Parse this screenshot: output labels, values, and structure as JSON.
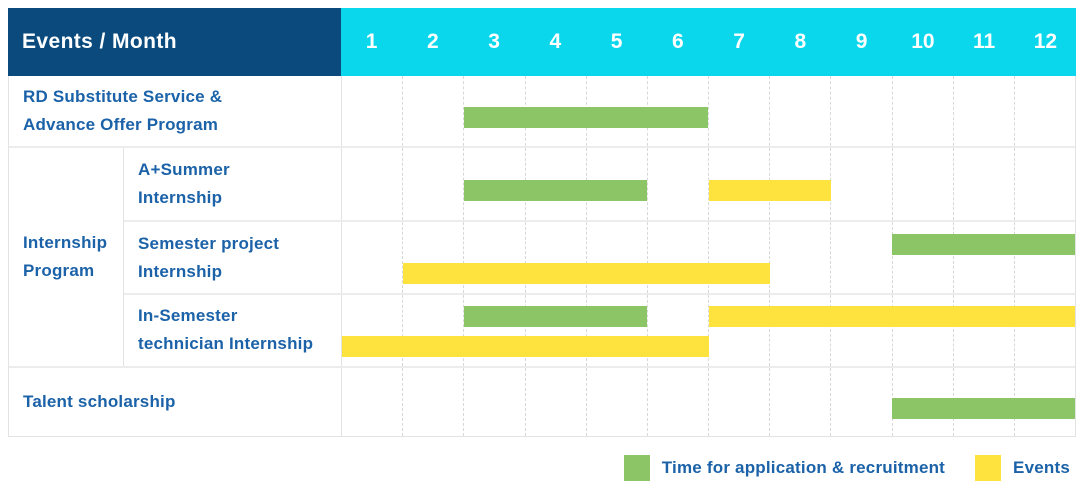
{
  "colors": {
    "header_navy": "#0a4a7d",
    "header_cyan": "#0bd7ec",
    "application_green": "#8cc566",
    "event_yellow": "#fee23e",
    "label_blue": "#1b62a8"
  },
  "chart_data": {
    "type": "bar",
    "subtype": "gantt-schedule",
    "title": "Events / Month",
    "x_axis": {
      "label": "Month",
      "range": [
        1,
        12
      ],
      "ticks": [
        "1",
        "2",
        "3",
        "4",
        "5",
        "6",
        "7",
        "8",
        "9",
        "10",
        "11",
        "12"
      ]
    },
    "groups": [
      {
        "label": "Internship Program",
        "label_lines": [
          "Internship",
          "Program"
        ],
        "row_indexes": [
          1,
          2,
          3
        ]
      }
    ],
    "rows": [
      {
        "label": "RD Substitute Service & Advance Offer Program",
        "label_lines": [
          "RD Substitute Service &",
          "Advance Offer Program"
        ],
        "group": null,
        "bars": [
          {
            "kind": "application",
            "series": "Time for application & recruitment",
            "start_month": 3,
            "end_month": 6,
            "track": "middle"
          }
        ]
      },
      {
        "label": "A+Summer Internship",
        "label_lines": [
          "A+Summer",
          "Internship"
        ],
        "group": "Internship Program",
        "bars": [
          {
            "kind": "application",
            "series": "Time for application & recruitment",
            "start_month": 3,
            "end_month": 5,
            "track": "middle"
          },
          {
            "kind": "event",
            "series": "Events",
            "start_month": 7,
            "end_month": 8,
            "track": "middle"
          }
        ]
      },
      {
        "label": "Semester project Internship",
        "label_lines": [
          "Semester project",
          "Internship"
        ],
        "group": "Internship Program",
        "bars": [
          {
            "kind": "application",
            "series": "Time for application & recruitment",
            "start_month": 10,
            "end_month": 12,
            "track": "top"
          },
          {
            "kind": "event",
            "series": "Events",
            "start_month": 2,
            "end_month": 7,
            "track": "bottom"
          }
        ]
      },
      {
        "label": "In-Semester technician Internship",
        "label_lines": [
          "In-Semester",
          "technician Internship"
        ],
        "group": "Internship Program",
        "bars": [
          {
            "kind": "application",
            "series": "Time for application & recruitment",
            "start_month": 3,
            "end_month": 5,
            "track": "top"
          },
          {
            "kind": "event",
            "series": "Events",
            "start_month": 7,
            "end_month": 12,
            "track": "top"
          },
          {
            "kind": "event",
            "series": "Events",
            "start_month": 1,
            "end_month": 6,
            "track": "bottom"
          }
        ]
      },
      {
        "label": "Talent scholarship",
        "label_lines": [
          "Talent scholarship"
        ],
        "group": null,
        "bars": [
          {
            "kind": "application",
            "series": "Time for application & recruitment",
            "start_month": 10,
            "end_month": 12,
            "track": "middle"
          }
        ]
      }
    ],
    "legend_position": "bottom-right"
  },
  "legend": {
    "items": [
      {
        "kind": "application",
        "label": "Time for application & recruitment",
        "color": "#8cc566"
      },
      {
        "kind": "event",
        "label": "Events",
        "color": "#fee23e"
      }
    ]
  }
}
